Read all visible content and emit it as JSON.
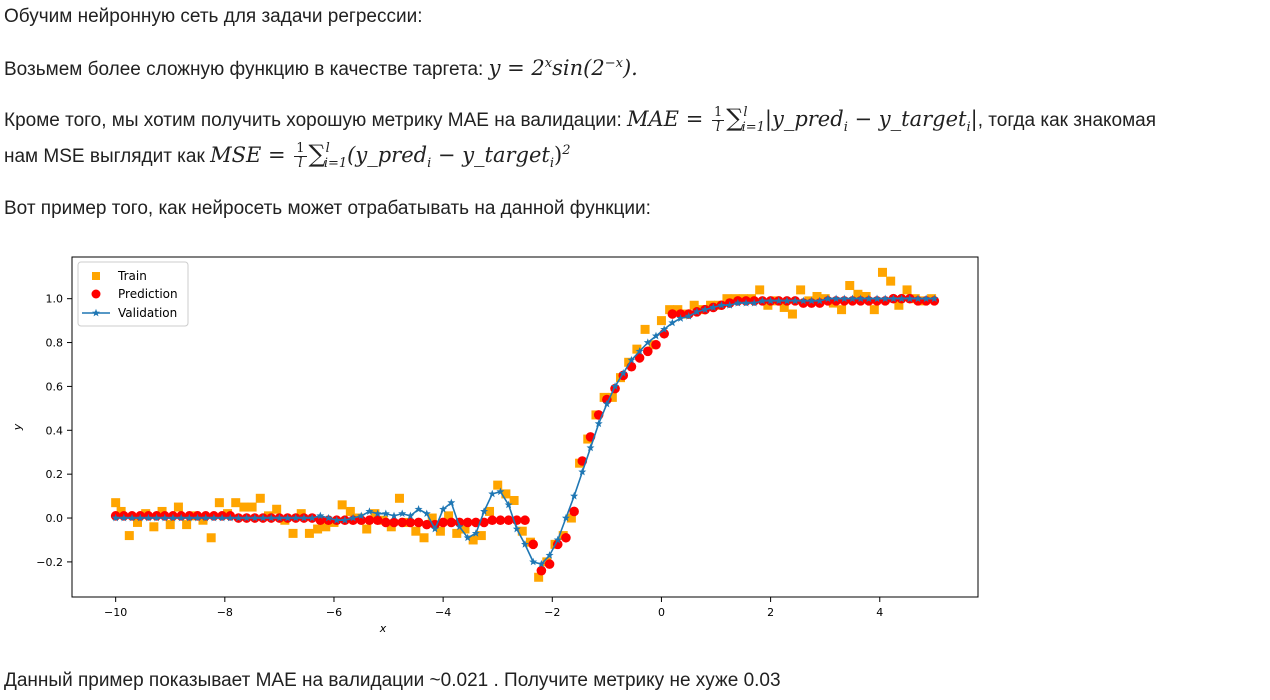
{
  "intro": "Обучим нейронную сеть для задачи регрессии:",
  "target_text": "Возьмем более сложную функцию в качестве таргета:",
  "target_formula": {
    "lhs": "y = 2",
    "exp_x": "x",
    "sin": "sin(2",
    "exp_negx": "−x",
    "end": ")."
  },
  "metric_text": "Кроме того, мы хотим получить хорошую метрику MAE на валидации:",
  "mae_formula": {
    "name": "MAE = ",
    "frac_num": "1",
    "frac_den": "l",
    "sum": "∑",
    "sum_sub": "i=1",
    "sum_sup": "l",
    "body": "|y_pred",
    "idx1": "i",
    "minus": " − y_target",
    "idx2": "i",
    "close": "|"
  },
  "metric_tail": ", тогда как знакомая",
  "mse_text": "нам MSE выглядит как",
  "mse_formula": {
    "name": "MSE = ",
    "frac_num": "1",
    "frac_den": "l",
    "sum": "∑",
    "sum_sub": "i=1",
    "sum_sup": "l",
    "body": "(y_pred",
    "idx1": "i",
    "minus": " − y_target",
    "idx2": "i",
    "close": ")",
    "pow": "2"
  },
  "example_text": "Вот пример того, как нейросеть может отрабатывать на данной функции:",
  "footer_text": "Данный пример показывает MAE на валидации ~0.021 . Получите метрику не хуже 0.03",
  "chart_data": {
    "type": "scatter",
    "xlabel": "x",
    "ylabel": "y",
    "xlim": [
      -10.8,
      5.8
    ],
    "ylim": [
      -0.36,
      1.19
    ],
    "xticks": [
      -10,
      -8,
      -6,
      -4,
      -2,
      0,
      2,
      4
    ],
    "xtick_labels": [
      "−10",
      "−8",
      "−6",
      "−4",
      "−2",
      "0",
      "2",
      "4"
    ],
    "yticks": [
      -0.2,
      0.0,
      0.2,
      0.4,
      0.6,
      0.8,
      1.0
    ],
    "ytick_labels": [
      "−0.2",
      "0.0",
      "0.2",
      "0.4",
      "0.6",
      "0.8",
      "1.0"
    ],
    "grid": false,
    "legend_position": "upper-left",
    "colors": {
      "train": "#FFA500",
      "prediction": "#FF0000",
      "validation": "#1f77b4"
    },
    "series": [
      {
        "name": "Train",
        "marker": "square",
        "x": [
          -10,
          -9.9,
          -9.75,
          -9.6,
          -9.45,
          -9.3,
          -9.15,
          -9,
          -8.85,
          -8.7,
          -8.55,
          -8.4,
          -8.25,
          -8.1,
          -7.95,
          -7.8,
          -7.65,
          -7.5,
          -7.35,
          -7.2,
          -7.05,
          -6.9,
          -6.75,
          -6.6,
          -6.45,
          -6.3,
          -6.15,
          -6,
          -5.85,
          -5.7,
          -5.55,
          -5.4,
          -5.25,
          -5.1,
          -4.95,
          -4.8,
          -4.65,
          -4.5,
          -4.35,
          -4.2,
          -4.05,
          -3.9,
          -3.75,
          -3.6,
          -3.45,
          -3.3,
          -3.15,
          -3,
          -2.85,
          -2.7,
          -2.55,
          -2.4,
          -2.25,
          -2.1,
          -1.95,
          -1.8,
          -1.65,
          -1.5,
          -1.35,
          -1.2,
          -1.05,
          -0.9,
          -0.75,
          -0.6,
          -0.45,
          -0.3,
          -0.15,
          0,
          0.15,
          0.3,
          0.45,
          0.6,
          0.75,
          0.9,
          1.05,
          1.2,
          1.35,
          1.5,
          1.65,
          1.8,
          1.95,
          2.1,
          2.25,
          2.4,
          2.55,
          2.7,
          2.85,
          3,
          3.15,
          3.3,
          3.45,
          3.6,
          3.75,
          3.9,
          4.05,
          4.2,
          4.35,
          4.5,
          4.65,
          4.8,
          4.95
        ],
        "y": [
          0.07,
          0.03,
          -0.08,
          -0.02,
          0.02,
          -0.04,
          0.03,
          -0.03,
          0.05,
          -0.03,
          0.01,
          -0.01,
          -0.09,
          0.07,
          0.02,
          0.07,
          0.05,
          0.05,
          0.09,
          0.01,
          0.04,
          -0.01,
          -0.07,
          0.02,
          -0.07,
          -0.05,
          -0.04,
          -0.02,
          0.06,
          0.03,
          0.0,
          -0.05,
          0.02,
          -0.01,
          -0.04,
          0.09,
          -0.02,
          -0.06,
          -0.09,
          0.0,
          -0.06,
          0.01,
          -0.07,
          -0.05,
          -0.1,
          -0.08,
          0.03,
          0.15,
          0.11,
          0.08,
          -0.06,
          -0.11,
          -0.27,
          -0.2,
          -0.12,
          -0.08,
          0.0,
          0.25,
          0.36,
          0.47,
          0.55,
          0.55,
          0.64,
          0.71,
          0.77,
          0.86,
          0.79,
          0.9,
          0.95,
          0.95,
          0.93,
          0.97,
          0.95,
          0.97,
          0.97,
          1.0,
          1.0,
          1.0,
          1.0,
          1.04,
          0.97,
          0.99,
          0.96,
          0.93,
          1.04,
          0.99,
          1.01,
          1.0,
          0.98,
          0.95,
          1.06,
          1.02,
          1.01,
          0.95,
          1.12,
          1.08,
          0.97,
          1.04,
          1.0,
          0.99,
          1.0
        ]
      },
      {
        "name": "Prediction",
        "marker": "circle",
        "x": [
          -10,
          -9.85,
          -9.7,
          -9.55,
          -9.4,
          -9.25,
          -9.1,
          -8.95,
          -8.8,
          -8.65,
          -8.5,
          -8.35,
          -8.2,
          -8.05,
          -7.9,
          -7.75,
          -7.6,
          -7.45,
          -7.3,
          -7.15,
          -7,
          -6.85,
          -6.7,
          -6.55,
          -6.4,
          -6.25,
          -6.1,
          -5.95,
          -5.8,
          -5.65,
          -5.5,
          -5.35,
          -5.2,
          -5.05,
          -4.9,
          -4.75,
          -4.6,
          -4.45,
          -4.3,
          -4.15,
          -4,
          -3.85,
          -3.7,
          -3.55,
          -3.4,
          -3.25,
          -3.1,
          -2.95,
          -2.8,
          -2.65,
          -2.5,
          -2.35,
          -2.2,
          -2.05,
          -1.9,
          -1.75,
          -1.6,
          -1.45,
          -1.3,
          -1.15,
          -1,
          -0.85,
          -0.7,
          -0.55,
          -0.4,
          -0.25,
          -0.1,
          0.05,
          0.2,
          0.35,
          0.5,
          0.65,
          0.8,
          0.95,
          1.1,
          1.25,
          1.4,
          1.55,
          1.7,
          1.85,
          2,
          2.15,
          2.3,
          2.45,
          2.6,
          2.75,
          2.9,
          3.05,
          3.2,
          3.35,
          3.5,
          3.65,
          3.8,
          3.95,
          4.1,
          4.25,
          4.4,
          4.55,
          4.7,
          4.85,
          5
        ],
        "y": [
          0.01,
          0.01,
          0.01,
          0.01,
          0.01,
          0.01,
          0.01,
          0.01,
          0.01,
          0.01,
          0.01,
          0.01,
          0.01,
          0.01,
          0.01,
          0.0,
          0.0,
          0.0,
          0.0,
          0.0,
          0.0,
          0.0,
          0.0,
          0.0,
          0.0,
          -0.01,
          -0.01,
          -0.01,
          -0.01,
          -0.01,
          -0.01,
          -0.01,
          -0.01,
          -0.02,
          -0.02,
          -0.02,
          -0.02,
          -0.02,
          -0.03,
          -0.03,
          -0.02,
          -0.02,
          -0.02,
          -0.02,
          -0.02,
          -0.02,
          -0.01,
          -0.01,
          -0.01,
          -0.01,
          -0.01,
          -0.12,
          -0.24,
          -0.21,
          -0.12,
          -0.09,
          0.03,
          0.26,
          0.37,
          0.47,
          0.54,
          0.59,
          0.65,
          0.69,
          0.73,
          0.76,
          0.79,
          0.84,
          0.93,
          0.93,
          0.93,
          0.94,
          0.95,
          0.96,
          0.97,
          0.98,
          0.99,
          0.99,
          0.99,
          0.99,
          0.99,
          0.99,
          0.99,
          0.99,
          0.98,
          0.98,
          0.98,
          0.99,
          0.99,
          0.99,
          0.99,
          0.99,
          0.99,
          0.99,
          0.99,
          1.0,
          1.0,
          1.0,
          0.99,
          0.99,
          0.99
        ]
      },
      {
        "name": "Validation",
        "marker": "star",
        "x": [
          -10,
          -9.85,
          -9.7,
          -9.55,
          -9.4,
          -9.25,
          -9.1,
          -8.95,
          -8.8,
          -8.65,
          -8.5,
          -8.35,
          -8.2,
          -8.05,
          -7.9,
          -7.75,
          -7.6,
          -7.45,
          -7.3,
          -7.15,
          -7,
          -6.85,
          -6.7,
          -6.55,
          -6.4,
          -6.25,
          -6.1,
          -5.95,
          -5.8,
          -5.65,
          -5.5,
          -5.35,
          -5.2,
          -5.05,
          -4.9,
          -4.75,
          -4.6,
          -4.45,
          -4.3,
          -4.15,
          -4,
          -3.85,
          -3.7,
          -3.55,
          -3.4,
          -3.25,
          -3.1,
          -2.95,
          -2.8,
          -2.65,
          -2.5,
          -2.35,
          -2.2,
          -2.05,
          -1.9,
          -1.75,
          -1.6,
          -1.45,
          -1.3,
          -1.15,
          -1,
          -0.85,
          -0.7,
          -0.55,
          -0.4,
          -0.25,
          -0.1,
          0.05,
          0.2,
          0.35,
          0.5,
          0.65,
          0.8,
          0.95,
          1.1,
          1.25,
          1.4,
          1.55,
          1.7,
          1.85,
          2,
          2.15,
          2.3,
          2.45,
          2.6,
          2.75,
          2.9,
          3.05,
          3.2,
          3.35,
          3.5,
          3.65,
          3.8,
          3.95,
          4.1,
          4.25,
          4.4,
          4.55,
          4.7,
          4.85,
          5
        ],
        "y": [
          0.0,
          0.0,
          0.0,
          0.0,
          0.0,
          0.0,
          0.0,
          0.0,
          0.0,
          0.0,
          0.0,
          0.0,
          0.0,
          0.0,
          0.0,
          0.0,
          0.0,
          0.0,
          0.0,
          0.0,
          0.0,
          0.0,
          0.0,
          0.0,
          0.0,
          0.01,
          0.0,
          -0.01,
          -0.01,
          0.0,
          0.01,
          0.03,
          0.02,
          0.02,
          0.01,
          0.02,
          0.01,
          0.04,
          0.02,
          -0.05,
          0.04,
          0.07,
          -0.04,
          -0.09,
          -0.07,
          0.03,
          0.11,
          0.12,
          0.06,
          -0.05,
          -0.12,
          -0.2,
          -0.21,
          -0.17,
          -0.1,
          0.0,
          0.1,
          0.21,
          0.32,
          0.43,
          0.52,
          0.6,
          0.66,
          0.72,
          0.76,
          0.8,
          0.83,
          0.86,
          0.89,
          0.91,
          0.92,
          0.94,
          0.95,
          0.96,
          0.97,
          0.97,
          0.98,
          0.98,
          0.98,
          0.99,
          0.99,
          0.99,
          0.99,
          0.99,
          0.99,
          0.99,
          0.99,
          1.0,
          1.0,
          1.0,
          1.0,
          1.0,
          1.0,
          1.0,
          1.0,
          1.0,
          1.0,
          1.0,
          1.0,
          1.0,
          1.0
        ]
      }
    ]
  }
}
